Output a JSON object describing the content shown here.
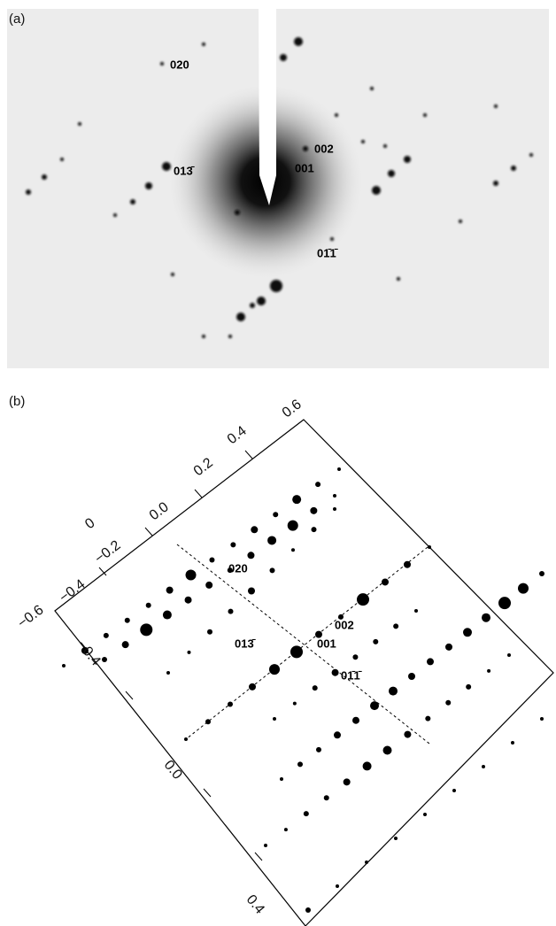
{
  "panel_a": {
    "label": "(a)",
    "spot_labels": [
      "020",
      "002",
      "001",
      "013̄",
      "01̄1̄"
    ]
  },
  "panel_b": {
    "label": "(b)",
    "spot_labels": [
      "020",
      "002",
      "001",
      "013̄",
      "01̄1̄"
    ],
    "top_axis_labels": [
      "0.6",
      "0.4",
      "0.2",
      "0.0",
      "0",
      "−0.2",
      "−0.4",
      "−0.6"
    ],
    "side_axis_labels": [
      "−0.4",
      "0.0",
      "0.4"
    ]
  }
}
